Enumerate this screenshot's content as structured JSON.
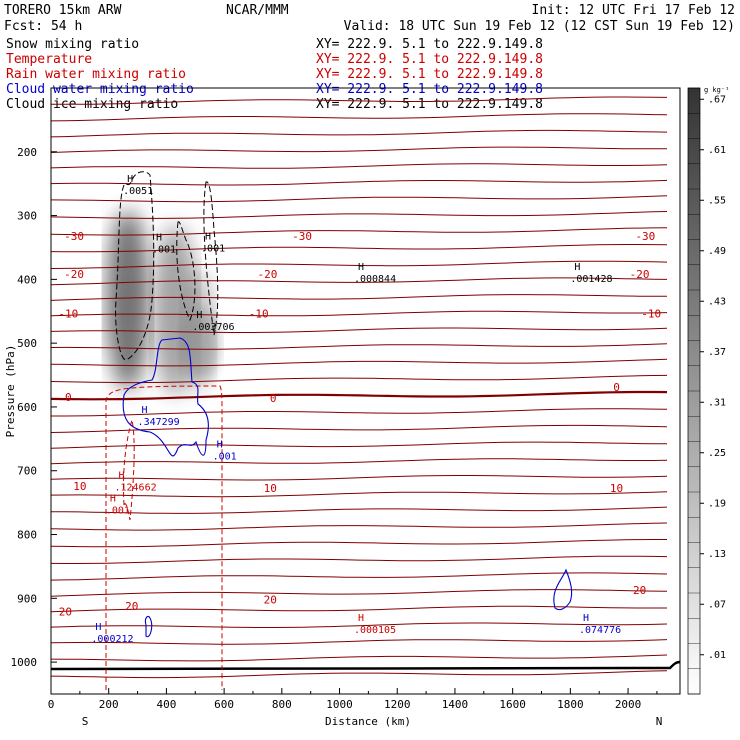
{
  "header": {
    "model": "TORERO  15km ARW",
    "center": "NCAR/MMM",
    "init": "Init: 12 UTC Fri 17 Feb 12",
    "fcst": "Fcst:   54 h",
    "valid": "Valid: 18 UTC Sun 19 Feb 12 (12 CST Sun 19 Feb 12)"
  },
  "fields": [
    {
      "name": "Snow mixing ratio",
      "color": "#000000",
      "xy": "XY= 222.9.  5.1 to 222.9.149.8"
    },
    {
      "name": "Temperature",
      "color": "#cc0000",
      "xy": "XY= 222.9.  5.1 to 222.9.149.8"
    },
    {
      "name": "Rain water mixing ratio",
      "color": "#cc0000",
      "xy": "XY= 222.9.  5.1 to 222.9.149.8"
    },
    {
      "name": "Cloud water mixing ratio",
      "color": "#0000cc",
      "xy": "XY= 222.9.  5.1 to 222.9.149.8"
    },
    {
      "name": "Cloud ice mixing ratio",
      "color": "#000000",
      "xy": "XY= 222.9.  5.1 to 222.9.149.8"
    }
  ],
  "chart_data": {
    "type": "cross-section contour",
    "xlabel": "Distance (km)",
    "ylabel": "Pressure (hPa)",
    "xlim": [
      0,
      2180
    ],
    "ylim": [
      1050,
      100
    ],
    "xticks": [
      0,
      200,
      400,
      600,
      800,
      1000,
      1200,
      1400,
      1600,
      1800,
      2000
    ],
    "yticks": [
      200,
      300,
      400,
      500,
      600,
      700,
      800,
      900,
      1000
    ],
    "endpoints": {
      "left": "S",
      "right": "N"
    },
    "colorbar": {
      "unit": "g kg⁻¹",
      "ticks": [
        ".01",
        ".07",
        ".13",
        ".19",
        ".25",
        ".31",
        ".37",
        ".43",
        ".49",
        ".55",
        ".61",
        ".67"
      ]
    },
    "temperature_labels": [
      {
        "x": 80,
        "p": 338,
        "text": "-30"
      },
      {
        "x": 870,
        "p": 338,
        "text": "-30"
      },
      {
        "x": 2060,
        "p": 338,
        "text": "-30"
      },
      {
        "x": 80,
        "p": 398,
        "text": "-20"
      },
      {
        "x": 750,
        "p": 398,
        "text": "-20"
      },
      {
        "x": 2040,
        "p": 398,
        "text": "-20"
      },
      {
        "x": 60,
        "p": 460,
        "text": "-10"
      },
      {
        "x": 720,
        "p": 460,
        "text": "-10"
      },
      {
        "x": 2080,
        "p": 460,
        "text": "-10"
      },
      {
        "x": 60,
        "p": 591,
        "text": "0"
      },
      {
        "x": 770,
        "p": 592,
        "text": "0"
      },
      {
        "x": 1960,
        "p": 575,
        "text": "0"
      },
      {
        "x": 100,
        "p": 730,
        "text": "10"
      },
      {
        "x": 760,
        "p": 733,
        "text": "10"
      },
      {
        "x": 1960,
        "p": 733,
        "text": "10"
      },
      {
        "x": 50,
        "p": 927,
        "text": "20"
      },
      {
        "x": 280,
        "p": 918,
        "text": "20"
      },
      {
        "x": 760,
        "p": 908,
        "text": "20"
      },
      {
        "x": 2040,
        "p": 893,
        "text": "20"
      }
    ],
    "maxima": [
      {
        "field": "Snow mixing ratio",
        "x": 250,
        "p": 263,
        "value": ".0051"
      },
      {
        "field": "Snow mixing ratio",
        "x": 350,
        "p": 355,
        "value": ".001"
      },
      {
        "field": "Snow mixing ratio",
        "x": 520,
        "p": 353,
        "value": ".001"
      },
      {
        "field": "Snow mixing ratio",
        "x": 490,
        "p": 476,
        "value": ".003706"
      },
      {
        "field": "Cloud ice mixing ratio",
        "x": 1050,
        "p": 401,
        "value": ".000844"
      },
      {
        "field": "Cloud ice mixing ratio",
        "x": 1800,
        "p": 401,
        "value": ".001428"
      },
      {
        "field": "Cloud water mixing ratio",
        "x": 300,
        "p": 625,
        "value": ".347299"
      },
      {
        "field": "Cloud water mixing ratio",
        "x": 560,
        "p": 679,
        "value": ".001"
      },
      {
        "field": "Rain water mixing ratio",
        "x": 220,
        "p": 728,
        "value": ".124662"
      },
      {
        "field": "Rain water mixing ratio",
        "x": 190,
        "p": 764,
        "value": ".001"
      },
      {
        "field": "Rain water mixing ratio",
        "x": 1050,
        "p": 951,
        "value": ".000105"
      },
      {
        "field": "Cloud water mixing ratio",
        "x": 140,
        "p": 965,
        "value": ".000212"
      },
      {
        "field": "Cloud water mixing ratio",
        "x": 1830,
        "p": 951,
        "value": ".074776"
      }
    ]
  }
}
